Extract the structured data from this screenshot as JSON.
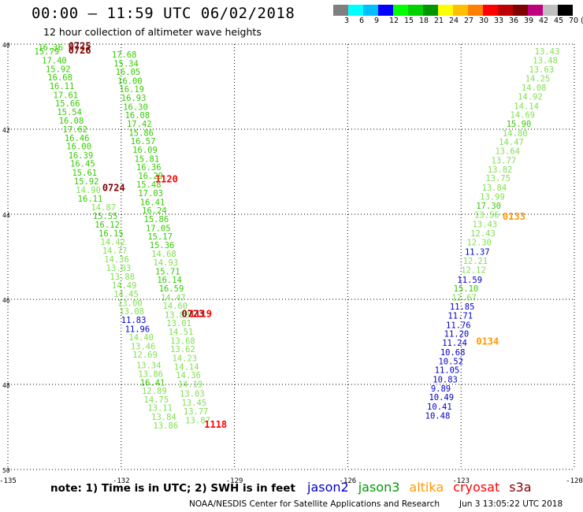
{
  "header": {
    "title": "00:00 – 11:59 UTC 06/02/2018",
    "subtitle": "12 hour collection of altimeter wave heights"
  },
  "colorbar": {
    "colors": [
      "#7f7f7f",
      "#00ffff",
      "#00bfff",
      "#0000ff",
      "#00ff00",
      "#00d200",
      "#009600",
      "#ffff00",
      "#ffbf00",
      "#ff7f00",
      "#ff0000",
      "#bf0000",
      "#7f0000",
      "#bf007f",
      "#bfbfbf",
      "#000000"
    ],
    "labels": [
      "3",
      "6",
      "9",
      "12",
      "15",
      "18",
      "21",
      "24",
      "27",
      "30",
      "33",
      "36",
      "39",
      "42",
      "45",
      "70",
      "(ft)"
    ]
  },
  "chart_data": {
    "type": "scatter",
    "xlim": [
      -135,
      -120
    ],
    "ylim": [
      30,
      40
    ],
    "x_ticks": [
      "-135",
      "-132",
      "-129",
      "-126",
      "-123",
      "-120"
    ],
    "y_ticks": [
      "40",
      "42",
      "44",
      "46",
      "48",
      "50"
    ],
    "grid": true,
    "description_units": "SWH in feet, time in UTC",
    "tracks": [
      {
        "series": "jason3",
        "points": [
          {
            "x": -134.2,
            "y": 39.93,
            "v": "16.36",
            "c": "#33cc00"
          },
          {
            "x": -134.3,
            "y": 39.83,
            "v": "15.79",
            "c": "#33cc00"
          },
          {
            "x": -134.1,
            "y": 39.62,
            "v": "17.40",
            "c": "#33cc00"
          },
          {
            "x": -134.0,
            "y": 39.42,
            "v": "15.92",
            "c": "#33cc00"
          },
          {
            "x": -133.95,
            "y": 39.22,
            "v": "16.68",
            "c": "#33cc00"
          },
          {
            "x": -133.9,
            "y": 39.02,
            "v": "16.11",
            "c": "#33cc00"
          },
          {
            "x": -133.8,
            "y": 38.81,
            "v": "17.61",
            "c": "#33cc00"
          },
          {
            "x": -133.75,
            "y": 38.61,
            "v": "15.66",
            "c": "#33cc00"
          },
          {
            "x": -133.7,
            "y": 38.41,
            "v": "15.54",
            "c": "#33cc00"
          },
          {
            "x": -133.65,
            "y": 38.2,
            "v": "16.08",
            "c": "#33cc00"
          },
          {
            "x": -133.55,
            "y": 38.0,
            "v": "17.62",
            "c": "#33cc00"
          },
          {
            "x": -133.5,
            "y": 37.8,
            "v": "16.46",
            "c": "#33cc00"
          },
          {
            "x": -133.45,
            "y": 37.6,
            "v": "16.00",
            "c": "#33cc00"
          },
          {
            "x": -133.4,
            "y": 37.39,
            "v": "16.39",
            "c": "#33cc00"
          },
          {
            "x": -133.35,
            "y": 37.19,
            "v": "16.45",
            "c": "#33cc00"
          },
          {
            "x": -133.3,
            "y": 36.98,
            "v": "15.61",
            "c": "#33cc00"
          },
          {
            "x": -133.25,
            "y": 36.78,
            "v": "15.92",
            "c": "#33cc00"
          },
          {
            "x": -133.2,
            "y": 36.57,
            "v": "14.90",
            "c": "#80e050"
          },
          {
            "x": -133.15,
            "y": 36.37,
            "v": "16.11",
            "c": "#33cc00"
          },
          {
            "x": -132.8,
            "y": 36.17,
            "v": "14.87",
            "c": "#80e050"
          },
          {
            "x": -132.75,
            "y": 35.96,
            "v": "15.55",
            "c": "#33cc00"
          },
          {
            "x": -132.7,
            "y": 35.76,
            "v": "16.12",
            "c": "#33cc00"
          },
          {
            "x": -132.6,
            "y": 35.56,
            "v": "16.15",
            "c": "#33cc00"
          },
          {
            "x": -132.55,
            "y": 35.35,
            "v": "14.42",
            "c": "#80e050"
          },
          {
            "x": -132.5,
            "y": 35.15,
            "v": "14.77",
            "c": "#80e050"
          },
          {
            "x": -132.45,
            "y": 34.94,
            "v": "14.36",
            "c": "#80e050"
          },
          {
            "x": -132.4,
            "y": 34.74,
            "v": "13.03",
            "c": "#80e050"
          },
          {
            "x": -132.3,
            "y": 34.54,
            "v": "13.88",
            "c": "#80e050"
          },
          {
            "x": -132.25,
            "y": 34.33,
            "v": "14.49",
            "c": "#80e050"
          },
          {
            "x": -132.2,
            "y": 34.13,
            "v": "14.45",
            "c": "#80e050"
          },
          {
            "x": -132.1,
            "y": 33.92,
            "v": "13.00",
            "c": "#80e050"
          },
          {
            "x": -132.05,
            "y": 33.72,
            "v": "13.08",
            "c": "#80e050"
          },
          {
            "x": -132.0,
            "y": 33.52,
            "v": "11.83",
            "c": "#0000cc"
          },
          {
            "x": -131.9,
            "y": 33.31,
            "v": "11.96",
            "c": "#0000cc"
          },
          {
            "x": -131.8,
            "y": 33.11,
            "v": "14.40",
            "c": "#80e050"
          },
          {
            "x": -131.75,
            "y": 32.9,
            "v": "13.46",
            "c": "#80e050"
          },
          {
            "x": -131.7,
            "y": 32.7,
            "v": "12.69",
            "c": "#80e050"
          },
          {
            "x": -131.6,
            "y": 32.45,
            "v": "13.34",
            "c": "#80e050"
          },
          {
            "x": -131.55,
            "y": 32.25,
            "v": "13.86",
            "c": "#80e050"
          },
          {
            "x": -131.5,
            "y": 32.05,
            "v": "16.41",
            "c": "#33cc00"
          },
          {
            "x": -131.45,
            "y": 31.85,
            "v": "12.89",
            "c": "#80e050"
          },
          {
            "x": -131.4,
            "y": 31.65,
            "v": "14.75",
            "c": "#80e050"
          },
          {
            "x": -131.3,
            "y": 31.45,
            "v": "13.11",
            "c": "#80e050"
          },
          {
            "x": -131.2,
            "y": 31.24,
            "v": "13.84",
            "c": "#80e050"
          },
          {
            "x": -131.15,
            "y": 31.04,
            "v": "13.86",
            "c": "#80e050"
          }
        ]
      },
      {
        "series": "jason3",
        "points": [
          {
            "x": -132.25,
            "y": 39.76,
            "v": "17.68",
            "c": "#33cc00"
          },
          {
            "x": -132.2,
            "y": 39.55,
            "v": "15.34",
            "c": "#33cc00"
          },
          {
            "x": -132.15,
            "y": 39.35,
            "v": "16.05",
            "c": "#33cc00"
          },
          {
            "x": -132.1,
            "y": 39.14,
            "v": "16.00",
            "c": "#33cc00"
          },
          {
            "x": -132.05,
            "y": 38.94,
            "v": "16.19",
            "c": "#33cc00"
          },
          {
            "x": -132.0,
            "y": 38.74,
            "v": "16.93",
            "c": "#33cc00"
          },
          {
            "x": -131.95,
            "y": 38.53,
            "v": "16.30",
            "c": "#33cc00"
          },
          {
            "x": -131.9,
            "y": 38.33,
            "v": "16.08",
            "c": "#33cc00"
          },
          {
            "x": -131.85,
            "y": 38.13,
            "v": "17.42",
            "c": "#33cc00"
          },
          {
            "x": -131.8,
            "y": 37.92,
            "v": "15.86",
            "c": "#33cc00"
          },
          {
            "x": -131.75,
            "y": 37.72,
            "v": "16.57",
            "c": "#33cc00"
          },
          {
            "x": -131.7,
            "y": 37.52,
            "v": "16.09",
            "c": "#33cc00"
          },
          {
            "x": -131.65,
            "y": 37.31,
            "v": "15.81",
            "c": "#33cc00"
          },
          {
            "x": -131.6,
            "y": 37.11,
            "v": "16.36",
            "c": "#33cc00"
          },
          {
            "x": -131.55,
            "y": 36.91,
            "v": "16.29",
            "c": "#33cc00"
          },
          {
            "x": -131.6,
            "y": 36.7,
            "v": "15.48",
            "c": "#33cc00"
          },
          {
            "x": -131.55,
            "y": 36.5,
            "v": "17.03",
            "c": "#33cc00"
          },
          {
            "x": -131.5,
            "y": 36.29,
            "v": "16.41",
            "c": "#33cc00"
          },
          {
            "x": -131.45,
            "y": 36.09,
            "v": "16.24",
            "c": "#33cc00"
          },
          {
            "x": -131.4,
            "y": 35.89,
            "v": "15.86",
            "c": "#33cc00"
          },
          {
            "x": -131.35,
            "y": 35.68,
            "v": "17.05",
            "c": "#33cc00"
          },
          {
            "x": -131.3,
            "y": 35.48,
            "v": "15.17",
            "c": "#33cc00"
          },
          {
            "x": -131.25,
            "y": 35.28,
            "v": "15.36",
            "c": "#33cc00"
          },
          {
            "x": -131.2,
            "y": 35.07,
            "v": "14.68",
            "c": "#80e050"
          },
          {
            "x": -131.15,
            "y": 34.87,
            "v": "14.93",
            "c": "#80e050"
          },
          {
            "x": -131.1,
            "y": 34.66,
            "v": "15.71",
            "c": "#33cc00"
          },
          {
            "x": -131.05,
            "y": 34.46,
            "v": "16.14",
            "c": "#33cc00"
          },
          {
            "x": -131.0,
            "y": 34.26,
            "v": "16.59",
            "c": "#33cc00"
          },
          {
            "x": -130.95,
            "y": 34.05,
            "v": "14.47",
            "c": "#80e050"
          },
          {
            "x": -130.9,
            "y": 33.85,
            "v": "14.60",
            "c": "#80e050"
          },
          {
            "x": -130.85,
            "y": 33.64,
            "v": "13.80",
            "c": "#80e050"
          },
          {
            "x": -130.8,
            "y": 33.44,
            "v": "13.01",
            "c": "#80e050"
          },
          {
            "x": -130.75,
            "y": 33.24,
            "v": "14.51",
            "c": "#80e050"
          },
          {
            "x": -130.7,
            "y": 33.03,
            "v": "13.68",
            "c": "#80e050"
          },
          {
            "x": -130.7,
            "y": 32.83,
            "v": "13.62",
            "c": "#80e050"
          },
          {
            "x": -130.65,
            "y": 32.62,
            "v": "14.23",
            "c": "#80e050"
          },
          {
            "x": -130.6,
            "y": 32.42,
            "v": "14.14",
            "c": "#80e050"
          },
          {
            "x": -130.55,
            "y": 32.22,
            "v": "14.36",
            "c": "#80e050"
          },
          {
            "x": -130.5,
            "y": 32.01,
            "v": "14.19",
            "c": "#80e050"
          },
          {
            "x": -130.45,
            "y": 31.79,
            "v": "13.03",
            "c": "#80e050"
          },
          {
            "x": -130.4,
            "y": 31.57,
            "v": "13.45",
            "c": "#80e050"
          },
          {
            "x": -130.35,
            "y": 31.37,
            "v": "13.77",
            "c": "#80e050"
          },
          {
            "x": -130.3,
            "y": 31.16,
            "v": "13.87",
            "c": "#80e050"
          }
        ]
      },
      {
        "series": "jason2",
        "points": [
          {
            "x": -121.05,
            "y": 39.83,
            "v": "13.43",
            "c": "#80e050"
          },
          {
            "x": -121.1,
            "y": 39.62,
            "v": "13.48",
            "c": "#80e050"
          },
          {
            "x": -121.2,
            "y": 39.41,
            "v": "13.63",
            "c": "#80e050"
          },
          {
            "x": -121.3,
            "y": 39.19,
            "v": "14.25",
            "c": "#80e050"
          },
          {
            "x": -121.4,
            "y": 38.98,
            "v": "14.08",
            "c": "#80e050"
          },
          {
            "x": -121.5,
            "y": 38.77,
            "v": "14.92",
            "c": "#80e050"
          },
          {
            "x": -121.6,
            "y": 38.55,
            "v": "14.14",
            "c": "#80e050"
          },
          {
            "x": -121.7,
            "y": 38.34,
            "v": "14.69",
            "c": "#80e050"
          },
          {
            "x": -121.8,
            "y": 38.13,
            "v": "15.90",
            "c": "#33cc00"
          },
          {
            "x": -121.9,
            "y": 37.91,
            "v": "14.80",
            "c": "#80e050"
          },
          {
            "x": -122.0,
            "y": 37.7,
            "v": "14.47",
            "c": "#80e050"
          },
          {
            "x": -122.1,
            "y": 37.49,
            "v": "13.64",
            "c": "#80e050"
          },
          {
            "x": -122.2,
            "y": 37.27,
            "v": "13.77",
            "c": "#80e050"
          },
          {
            "x": -122.3,
            "y": 37.06,
            "v": "13.82",
            "c": "#80e050"
          },
          {
            "x": -122.35,
            "y": 36.85,
            "v": "13.75",
            "c": "#80e050"
          },
          {
            "x": -122.45,
            "y": 36.63,
            "v": "13.84",
            "c": "#80e050"
          },
          {
            "x": -122.5,
            "y": 36.42,
            "v": "13.99",
            "c": "#80e050"
          },
          {
            "x": -122.6,
            "y": 36.2,
            "v": "17.30",
            "c": "#33cc00"
          },
          {
            "x": -122.65,
            "y": 35.99,
            "v": "13.56",
            "c": "#80e050"
          },
          {
            "x": -122.7,
            "y": 35.77,
            "v": "13.43",
            "c": "#80e050"
          },
          {
            "x": -122.75,
            "y": 35.56,
            "v": "12.43",
            "c": "#80e050"
          },
          {
            "x": -122.85,
            "y": 35.34,
            "v": "12.30",
            "c": "#80e050"
          },
          {
            "x": -122.9,
            "y": 35.12,
            "v": "11.37",
            "c": "#0000cc"
          },
          {
            "x": -122.95,
            "y": 34.91,
            "v": "12.21",
            "c": "#80e050"
          },
          {
            "x": -123.0,
            "y": 34.69,
            "v": "12.12",
            "c": "#80e050"
          },
          {
            "x": -123.1,
            "y": 34.46,
            "v": "11.59",
            "c": "#0000cc"
          },
          {
            "x": -123.2,
            "y": 34.26,
            "v": "15.10",
            "c": "#33cc00"
          },
          {
            "x": -123.25,
            "y": 34.05,
            "v": "12.67",
            "c": "#80e050"
          },
          {
            "x": -123.3,
            "y": 33.83,
            "v": "11.85",
            "c": "#0000cc"
          },
          {
            "x": -123.35,
            "y": 33.62,
            "v": "11.71",
            "c": "#0000cc"
          },
          {
            "x": -123.4,
            "y": 33.4,
            "v": "11.76",
            "c": "#0000cc"
          },
          {
            "x": -123.45,
            "y": 33.19,
            "v": "11.20",
            "c": "#0000cc"
          },
          {
            "x": -123.5,
            "y": 32.98,
            "v": "11.24",
            "c": "#0000cc"
          },
          {
            "x": -123.55,
            "y": 32.76,
            "v": "10.68",
            "c": "#0000cc"
          },
          {
            "x": -123.6,
            "y": 32.55,
            "v": "10.52",
            "c": "#0000cc"
          },
          {
            "x": -123.7,
            "y": 32.34,
            "v": "11.05",
            "c": "#0000cc"
          },
          {
            "x": -123.75,
            "y": 32.12,
            "v": "10.83",
            "c": "#0000cc"
          },
          {
            "x": -123.8,
            "y": 31.91,
            "v": "9.89",
            "c": "#0000cc"
          },
          {
            "x": -123.85,
            "y": 31.7,
            "v": "10.49",
            "c": "#0000cc"
          },
          {
            "x": -123.9,
            "y": 31.48,
            "v": "10.41",
            "c": "#0000cc"
          },
          {
            "x": -123.95,
            "y": 31.27,
            "v": "10.48",
            "c": "#0000cc"
          }
        ]
      }
    ],
    "time_labels": [
      {
        "x": -133.4,
        "y": 39.95,
        "v": "0725",
        "c": "#7f0000"
      },
      {
        "x": -133.4,
        "y": 39.85,
        "v": "0726",
        "c": "#7f0000"
      },
      {
        "x": -132.5,
        "y": 36.62,
        "v": "0724",
        "c": "#7f0000"
      },
      {
        "x": -131.1,
        "y": 36.82,
        "v": "1120",
        "c": "#ff0000"
      },
      {
        "x": -130.4,
        "y": 33.66,
        "v": "0723",
        "c": "#7f0000"
      },
      {
        "x": -130.2,
        "y": 33.66,
        "v": "1119",
        "c": "#ff0000"
      },
      {
        "x": -129.8,
        "y": 31.06,
        "v": "1118",
        "c": "#ff0000"
      },
      {
        "x": -121.9,
        "y": 35.94,
        "v": "0133",
        "c": "#ff9900"
      },
      {
        "x": -122.6,
        "y": 33.01,
        "v": "0134",
        "c": "#ff9900"
      }
    ]
  },
  "footer": {
    "note": "note: 1) Time is in UTC; 2) SWH is in feet",
    "credit": "NOAA/NESDIS Center for Satellite Applications and Research",
    "stamp": "Jun  3 13:05:22 UTC 2018"
  },
  "legend": [
    {
      "label": "jason2",
      "color": "#0000cc"
    },
    {
      "label": "jason3",
      "color": "#009900"
    },
    {
      "label": "altika",
      "color": "#ff9900"
    },
    {
      "label": "cryosat",
      "color": "#ff0000"
    },
    {
      "label": "s3a",
      "color": "#7f0000"
    }
  ]
}
